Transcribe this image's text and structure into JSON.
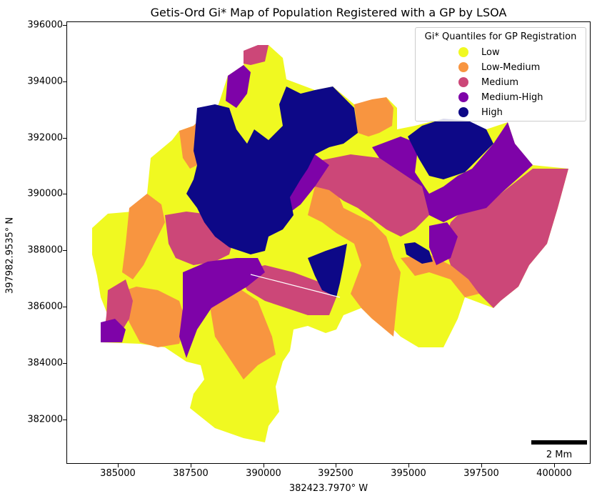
{
  "map": {
    "title": "Getis-Ord Gi* Map of Population Registered with a GP by LSOA",
    "x_axis_label": "382423.7970° W",
    "y_axis_label": "397982.9535° N",
    "x_ticks": [
      "385000",
      "387500",
      "390000",
      "392500",
      "395000",
      "397500",
      "400000"
    ],
    "y_ticks": [
      "396000",
      "394000",
      "392000",
      "390000",
      "388000",
      "386000",
      "384000",
      "382000"
    ],
    "scale_bar_label": "2 Mm"
  },
  "legend": {
    "title": "Gi* Quantiles for GP Registration",
    "items": [
      {
        "label": "Low",
        "color": "#f0f921"
      },
      {
        "label": "Low-Medium",
        "color": "#f89540"
      },
      {
        "label": "Medium",
        "color": "#cc4778"
      },
      {
        "label": "Medium-High",
        "color": "#7e03a8"
      },
      {
        "label": "High",
        "color": "#0d0887"
      }
    ]
  },
  "colors": {
    "low": "#f0f921",
    "low_medium": "#f89540",
    "medium": "#cc4778",
    "medium_high": "#7e03a8",
    "high": "#0d0887"
  }
}
